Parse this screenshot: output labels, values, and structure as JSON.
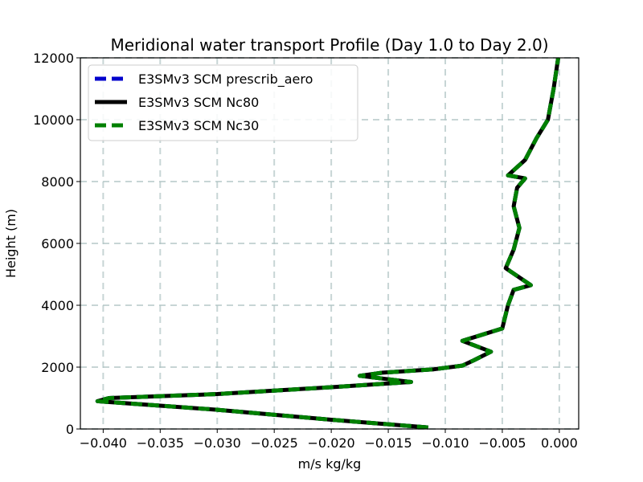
{
  "chart_data": {
    "type": "line",
    "title": "Meridional water transport Profile (Day 1.0 to Day 2.0)",
    "xlabel": "m/s kg/kg",
    "ylabel": "Height (m)",
    "xlim": [
      -0.042,
      0.0017
    ],
    "ylim": [
      0,
      12000
    ],
    "xticks": [
      -0.04,
      -0.035,
      -0.03,
      -0.025,
      -0.02,
      -0.015,
      -0.01,
      -0.005,
      0.0
    ],
    "xtick_labels": [
      "−0.040",
      "−0.035",
      "−0.030",
      "−0.025",
      "−0.020",
      "−0.015",
      "−0.010",
      "−0.005",
      "0.000"
    ],
    "yticks": [
      0,
      2000,
      4000,
      6000,
      8000,
      10000,
      12000
    ],
    "ytick_labels": [
      "0",
      "2000",
      "4000",
      "6000",
      "8000",
      "10000",
      "12000"
    ],
    "grid": true,
    "legend_position": "upper-left",
    "series": [
      {
        "name": "E3SMv3 SCM prescrib_aero",
        "color": "#0000cc",
        "style": "dashed",
        "x": [
          -0.0115,
          -0.02,
          -0.03,
          -0.0405,
          -0.0395,
          -0.03,
          -0.02,
          -0.013,
          -0.0175,
          -0.0155,
          -0.011,
          -0.0085,
          -0.0075,
          -0.006,
          -0.0085,
          -0.005,
          -0.0045,
          -0.004,
          -0.0025,
          -0.0047,
          -0.004,
          -0.0035,
          -0.004,
          -0.0037,
          -0.003,
          -0.0045,
          -0.003,
          -0.002,
          -0.001,
          -0.0005,
          -0.0001
        ],
        "y": [
          50,
          300,
          620,
          900,
          1000,
          1130,
          1350,
          1520,
          1720,
          1820,
          1930,
          2050,
          2220,
          2500,
          2850,
          3250,
          4000,
          4500,
          4650,
          5200,
          5800,
          6500,
          7200,
          7800,
          8100,
          8200,
          8700,
          9400,
          10000,
          11000,
          12000
        ]
      },
      {
        "name": "E3SMv3 SCM Nc80",
        "color": "#000000",
        "style": "solid",
        "x": [
          -0.0115,
          -0.02,
          -0.03,
          -0.0405,
          -0.0395,
          -0.03,
          -0.02,
          -0.013,
          -0.0175,
          -0.0155,
          -0.011,
          -0.0085,
          -0.0075,
          -0.006,
          -0.0085,
          -0.005,
          -0.0045,
          -0.004,
          -0.0025,
          -0.0047,
          -0.004,
          -0.0035,
          -0.004,
          -0.0037,
          -0.003,
          -0.0045,
          -0.003,
          -0.002,
          -0.001,
          -0.0005,
          -0.0001
        ],
        "y": [
          50,
          300,
          620,
          900,
          1000,
          1130,
          1350,
          1520,
          1720,
          1820,
          1930,
          2050,
          2220,
          2500,
          2850,
          3250,
          4000,
          4500,
          4650,
          5200,
          5800,
          6500,
          7200,
          7800,
          8100,
          8200,
          8700,
          9400,
          10000,
          11000,
          12000
        ]
      },
      {
        "name": "E3SMv3 SCM Nc30",
        "color": "#008000",
        "style": "dashed",
        "x": [
          -0.0115,
          -0.02,
          -0.03,
          -0.0405,
          -0.0395,
          -0.03,
          -0.02,
          -0.013,
          -0.0175,
          -0.0155,
          -0.011,
          -0.0085,
          -0.0075,
          -0.006,
          -0.0085,
          -0.005,
          -0.0045,
          -0.004,
          -0.0025,
          -0.0047,
          -0.004,
          -0.0035,
          -0.004,
          -0.0037,
          -0.003,
          -0.0045,
          -0.003,
          -0.002,
          -0.001,
          -0.0005,
          -0.0001
        ],
        "y": [
          50,
          300,
          620,
          900,
          1000,
          1130,
          1350,
          1520,
          1720,
          1820,
          1930,
          2050,
          2220,
          2500,
          2850,
          3250,
          4000,
          4500,
          4650,
          5200,
          5800,
          6500,
          7200,
          7800,
          8100,
          8200,
          8700,
          9400,
          10000,
          11000,
          12000
        ]
      }
    ]
  }
}
